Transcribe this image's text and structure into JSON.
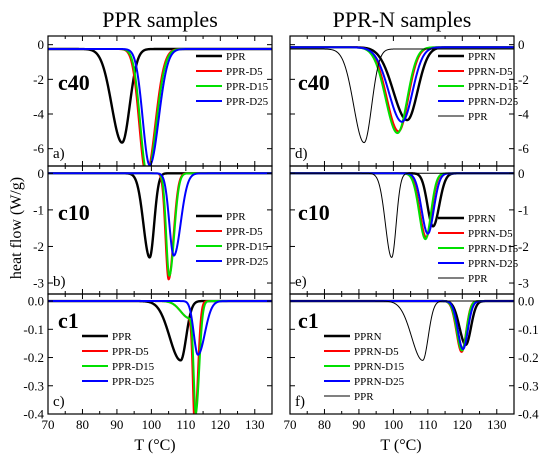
{
  "figure": {
    "ylabel": "heat flow (W/g)",
    "xlabel": "T (°C)"
  },
  "chart_data": [
    {
      "id": "a",
      "type": "line",
      "column_title": "PPR samples",
      "condition": "c40",
      "panel_label": "a)",
      "xlim": [
        70,
        135
      ],
      "x_ticks": [
        70,
        80,
        90,
        100,
        110,
        120,
        130
      ],
      "x_tick_labels": [],
      "ylim": [
        -7,
        0.5
      ],
      "y_ticks": [
        0,
        -2,
        -4,
        -6
      ],
      "y_tick_labels": [
        "0",
        "-2",
        "-4",
        "-6"
      ],
      "y_axis_side": "left",
      "legend_position": "right",
      "series": [
        {
          "name": "PPR",
          "color": "#000000",
          "width": 2.4,
          "baseline": -0.25,
          "peaks": [
            [
              91.5,
              -5.4,
              3.0,
              2.2
            ]
          ],
          "scale_gauss": 1.0
        },
        {
          "name": "PPR-D5",
          "color": "#ff0000",
          "width": 2.0,
          "baseline": -0.25,
          "peaks": [
            [
              98.5,
              -7.25,
              2.0,
              2.6
            ]
          ]
        },
        {
          "name": "PPR-D15",
          "color": "#00e000",
          "width": 2.0,
          "baseline": -0.25,
          "peaks": [
            [
              98.8,
              -7.2,
              2.0,
              2.6
            ]
          ]
        },
        {
          "name": "PPR-D25",
          "color": "#0000ff",
          "width": 2.0,
          "baseline": -0.25,
          "peaks": [
            [
              99.5,
              -6.7,
              2.0,
              2.6
            ]
          ]
        }
      ]
    },
    {
      "id": "b",
      "type": "line",
      "column_title": "",
      "condition": "c10",
      "panel_label": "b)",
      "xlim": [
        70,
        135
      ],
      "x_ticks": [
        70,
        80,
        90,
        100,
        110,
        120,
        130
      ],
      "x_tick_labels": [],
      "ylim": [
        -3.3,
        0.2
      ],
      "y_ticks": [
        0,
        -1,
        -2,
        -3
      ],
      "y_tick_labels": [
        "0",
        "-1",
        "-2",
        "-3"
      ],
      "y_axis_side": "left",
      "legend_position": "right",
      "series": [
        {
          "name": "PPR",
          "color": "#000000",
          "width": 2.4,
          "baseline": 0,
          "peaks": [
            [
              99.5,
              -2.3,
              1.8,
              1.3
            ]
          ]
        },
        {
          "name": "PPR-D5",
          "color": "#ff0000",
          "width": 2.0,
          "baseline": 0,
          "peaks": [
            [
              105.0,
              -2.9,
              0.9,
              1.4
            ]
          ]
        },
        {
          "name": "PPR-D15",
          "color": "#00e000",
          "width": 2.0,
          "baseline": 0,
          "peaks": [
            [
              105.2,
              -2.8,
              0.9,
              1.4
            ]
          ]
        },
        {
          "name": "PPR-D25",
          "color": "#0000ff",
          "width": 2.0,
          "baseline": 0,
          "peaks": [
            [
              106.5,
              -2.25,
              1.3,
              2.0
            ]
          ]
        }
      ]
    },
    {
      "id": "c",
      "type": "line",
      "column_title": "",
      "condition": "c1",
      "panel_label": "c)",
      "xlim": [
        70,
        135
      ],
      "x_ticks": [
        70,
        80,
        90,
        100,
        110,
        120,
        130
      ],
      "x_tick_labels": [
        "70",
        "80",
        "90",
        "100",
        "110",
        "120",
        "130"
      ],
      "ylim": [
        -0.4,
        0.025
      ],
      "y_ticks": [
        0.0,
        -0.1,
        -0.2,
        -0.3,
        -0.4
      ],
      "y_tick_labels": [
        "0.0",
        "-0.1",
        "-0.2",
        "-0.3",
        "-0.4"
      ],
      "y_axis_side": "left",
      "legend_position": "left",
      "series": [
        {
          "name": "PPR",
          "color": "#000000",
          "width": 2.4,
          "baseline": 0,
          "peaks": [
            [
              108.5,
              -0.21,
              3.2,
              1.6
            ]
          ]
        },
        {
          "name": "PPR-D5",
          "color": "#ff0000",
          "width": 2.0,
          "baseline": 0,
          "peaks": [
            [
              112.6,
              -0.405,
              0.55,
              0.9
            ],
            [
              111.0,
              -0.06,
              2.5,
              1.5
            ]
          ]
        },
        {
          "name": "PPR-D15",
          "color": "#00e000",
          "width": 2.0,
          "baseline": 0,
          "peaks": [
            [
              112.9,
              -0.37,
              0.6,
              1.0
            ],
            [
              111.0,
              -0.06,
              2.5,
              1.5
            ]
          ]
        },
        {
          "name": "PPR-D25",
          "color": "#0000ff",
          "width": 2.0,
          "baseline": 0,
          "peaks": [
            [
              113.5,
              -0.19,
              1.2,
              2.0
            ]
          ]
        }
      ]
    },
    {
      "id": "d",
      "type": "line",
      "column_title": "PPR-N samples",
      "condition": "c40",
      "panel_label": "d)",
      "xlim": [
        70,
        135
      ],
      "x_ticks": [
        70,
        80,
        90,
        100,
        110,
        120,
        130
      ],
      "x_tick_labels": [],
      "ylim": [
        -7,
        0.5
      ],
      "y_ticks": [
        0,
        -2,
        -4,
        -6
      ],
      "y_tick_labels": [
        "0",
        "-2",
        "-4",
        "-6"
      ],
      "y_axis_side": "right",
      "legend_position": "right",
      "series": [
        {
          "name": "PPRN",
          "color": "#000000",
          "width": 2.4,
          "baseline": -0.15,
          "peaks": [
            [
              104.0,
              -4.2,
              4.0,
              3.0
            ]
          ]
        },
        {
          "name": "PPRN-D5",
          "color": "#ff0000",
          "width": 2.0,
          "baseline": -0.15,
          "peaks": [
            [
              101.5,
              -4.85,
              3.4,
              2.8
            ]
          ]
        },
        {
          "name": "PPRN-D15",
          "color": "#00e000",
          "width": 2.0,
          "baseline": -0.15,
          "peaks": [
            [
              101.2,
              -4.95,
              3.4,
              2.8
            ]
          ]
        },
        {
          "name": "PPRN-D25",
          "color": "#0000ff",
          "width": 2.0,
          "baseline": -0.15,
          "peaks": [
            [
              102.5,
              -4.3,
              3.8,
              3.0
            ]
          ]
        },
        {
          "name": "PPR",
          "color": "#000000",
          "width": 1.0,
          "baseline": -0.25,
          "peaks": [
            [
              91.5,
              -5.4,
              3.0,
              2.2
            ]
          ]
        }
      ]
    },
    {
      "id": "e",
      "type": "line",
      "column_title": "",
      "condition": "c10",
      "panel_label": "e)",
      "xlim": [
        70,
        135
      ],
      "x_ticks": [
        70,
        80,
        90,
        100,
        110,
        120,
        130
      ],
      "x_tick_labels": [],
      "ylim": [
        -3.3,
        0.2
      ],
      "y_ticks": [
        0,
        -1,
        -2,
        -3
      ],
      "y_tick_labels": [
        "0",
        "-1",
        "-2",
        "-3"
      ],
      "y_axis_side": "right",
      "legend_position": "right",
      "series": [
        {
          "name": "PPRN",
          "color": "#000000",
          "width": 2.4,
          "baseline": 0,
          "peaks": [
            [
              111.5,
              -1.45,
              1.6,
              1.8
            ]
          ]
        },
        {
          "name": "PPRN-D5",
          "color": "#ff0000",
          "width": 2.0,
          "baseline": 0,
          "peaks": [
            [
              109.5,
              -1.75,
              1.8,
              1.6
            ]
          ]
        },
        {
          "name": "PPRN-D15",
          "color": "#00e000",
          "width": 2.0,
          "baseline": 0,
          "peaks": [
            [
              109.3,
              -1.8,
              1.8,
              1.6
            ]
          ]
        },
        {
          "name": "PPRN-D25",
          "color": "#0000ff",
          "width": 2.0,
          "baseline": 0,
          "peaks": [
            [
              110.0,
              -1.65,
              1.8,
              1.7
            ]
          ]
        },
        {
          "name": "PPR",
          "color": "#000000",
          "width": 1.0,
          "baseline": 0,
          "peaks": [
            [
              99.5,
              -2.3,
              1.8,
              1.3
            ]
          ]
        }
      ]
    },
    {
      "id": "f",
      "type": "line",
      "column_title": "",
      "condition": "c1",
      "panel_label": "f)",
      "xlim": [
        70,
        135
      ],
      "x_ticks": [
        70,
        80,
        90,
        100,
        110,
        120,
        130
      ],
      "x_tick_labels": [
        "70",
        "80",
        "90",
        "100",
        "110",
        "120",
        "130"
      ],
      "ylim": [
        -0.4,
        0.025
      ],
      "y_ticks": [
        0.0,
        -0.1,
        -0.2,
        -0.3,
        -0.4
      ],
      "y_tick_labels": [
        "0.0",
        "-0.1",
        "-0.2",
        "-0.3",
        "-0.4"
      ],
      "y_axis_side": "right",
      "legend_position": "left",
      "series": [
        {
          "name": "PPRN",
          "color": "#000000",
          "width": 2.4,
          "baseline": 0,
          "peaks": [
            [
              121.0,
              -0.155,
              1.8,
              1.5
            ]
          ]
        },
        {
          "name": "PPRN-D5",
          "color": "#ff0000",
          "width": 2.0,
          "baseline": 0,
          "peaks": [
            [
              119.8,
              -0.18,
              1.5,
              1.3
            ]
          ]
        },
        {
          "name": "PPRN-D15",
          "color": "#00e000",
          "width": 2.0,
          "baseline": 0,
          "peaks": [
            [
              119.9,
              -0.175,
              1.5,
              1.3
            ]
          ]
        },
        {
          "name": "PPRN-D25",
          "color": "#0000ff",
          "width": 2.0,
          "baseline": 0,
          "peaks": [
            [
              120.2,
              -0.17,
              1.5,
              1.4
            ]
          ]
        },
        {
          "name": "PPR",
          "color": "#000000",
          "width": 1.0,
          "baseline": 0,
          "peaks": [
            [
              108.5,
              -0.21,
              3.2,
              1.6
            ]
          ]
        }
      ]
    }
  ]
}
